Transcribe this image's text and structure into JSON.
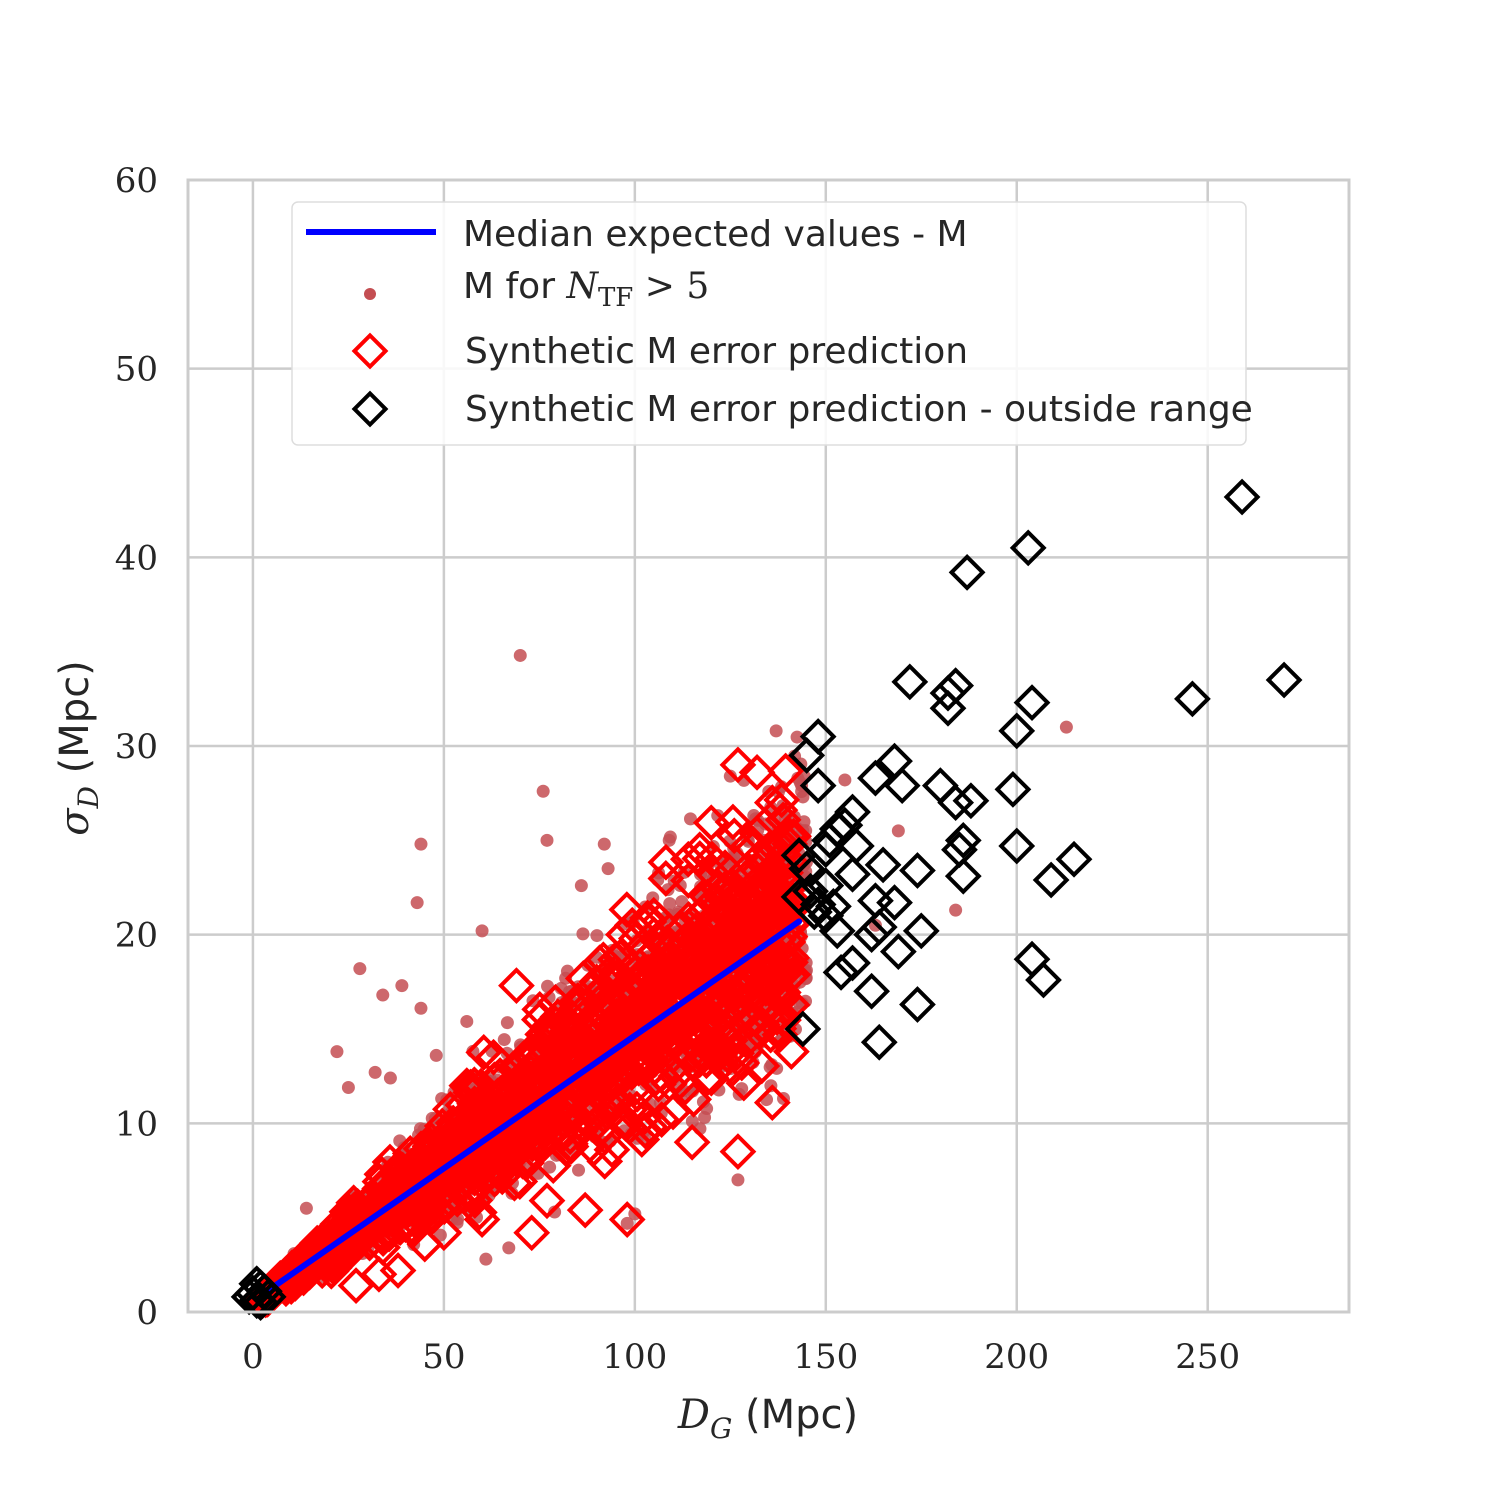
{
  "chart_data": {
    "type": "scatter",
    "title": "",
    "xlabel": "(Mpc)",
    "xlabel_symbol": "D",
    "xlabel_subscript": "G",
    "ylabel": "(Mpc)",
    "ylabel_symbol": "σ",
    "ylabel_subscript": "D",
    "xlim": [
      -17,
      287
    ],
    "ylim": [
      0,
      60
    ],
    "xticks": [
      0,
      50,
      100,
      150,
      200,
      250
    ],
    "yticks": [
      0,
      10,
      20,
      30,
      40,
      50,
      60
    ],
    "grid": true,
    "legend_placement": "top-center",
    "colors": {
      "median_line": "#0000ff",
      "observed_points": "#c44e52",
      "synthetic_in_range": "#ff0000",
      "synthetic_outside_range": "#000000",
      "grid": "#cccccc",
      "frame": "#cccccc"
    },
    "legend": [
      {
        "id": "median",
        "kind": "line",
        "label": "Median expected values - M"
      },
      {
        "id": "observed",
        "kind": "dot",
        "label_prefix": "M for ",
        "label_math": "N",
        "label_sub": "TF",
        "label_suffix": " > 5"
      },
      {
        "id": "synthetic",
        "kind": "diamond-red",
        "label": "Synthetic M error prediction"
      },
      {
        "id": "outside",
        "kind": "diamond-black",
        "label": "Synthetic M error prediction - outside range"
      }
    ],
    "series": [
      {
        "id": "median",
        "type": "line",
        "points": [
          [
            3,
            1.0
          ],
          [
            143,
            20.7
          ]
        ]
      },
      {
        "id": "observed",
        "type": "scatter",
        "outliers": [
          [
            70,
            34.8
          ],
          [
            137,
            30.8
          ],
          [
            213,
            31.0
          ],
          [
            76,
            27.6
          ],
          [
            44,
            24.8
          ],
          [
            77,
            25.0
          ],
          [
            92,
            24.8
          ],
          [
            93,
            23.5
          ],
          [
            86,
            22.6
          ],
          [
            43,
            21.7
          ],
          [
            28,
            18.2
          ],
          [
            34,
            16.8
          ],
          [
            39,
            17.3
          ],
          [
            44,
            16.1
          ],
          [
            22,
            13.8
          ],
          [
            25,
            11.9
          ],
          [
            32,
            12.7
          ],
          [
            36,
            12.4
          ],
          [
            106,
            22.9
          ],
          [
            109,
            25.0
          ],
          [
            60,
            20.2
          ],
          [
            155,
            28.2
          ],
          [
            169,
            25.5
          ],
          [
            184,
            21.3
          ],
          [
            163,
            20.5
          ],
          [
            134,
            25.0
          ],
          [
            125,
            28.4
          ],
          [
            127,
            7.0
          ],
          [
            100,
            5.2
          ],
          [
            98,
            4.7
          ],
          [
            79,
            5.3
          ],
          [
            67,
            3.4
          ],
          [
            61,
            2.8
          ],
          [
            14,
            5.5
          ],
          [
            19,
            4.0
          ],
          [
            120,
            20.5
          ],
          [
            130,
            17.5
          ],
          [
            140,
            16.0
          ],
          [
            118,
            22.5
          ],
          [
            90,
            18.8
          ],
          [
            56,
            15.4
          ],
          [
            48,
            13.6
          ]
        ],
        "cloud": {
          "x_range": [
            1,
            145
          ],
          "slope": 0.1473,
          "intercept": 0.55,
          "spread": 0.18,
          "count": 1800
        }
      },
      {
        "id": "synthetic",
        "type": "scatter",
        "outliers": [
          [
            127,
            29.0
          ],
          [
            132,
            28.6
          ],
          [
            136,
            27.0
          ],
          [
            138,
            26.6
          ],
          [
            135,
            24.5
          ],
          [
            114,
            24.0
          ],
          [
            117,
            24.5
          ],
          [
            135,
            23.0
          ],
          [
            130,
            21.5
          ],
          [
            69,
            17.3
          ],
          [
            105,
            20.0
          ],
          [
            97,
            20.0
          ],
          [
            136,
            11.1
          ],
          [
            127,
            8.5
          ],
          [
            98,
            4.9
          ],
          [
            87,
            5.4
          ],
          [
            73,
            4.2
          ],
          [
            38,
            2.2
          ],
          [
            141,
            13.8
          ],
          [
            138,
            14.7
          ],
          [
            128,
            13.2
          ],
          [
            115,
            9.0
          ],
          [
            110,
            10.6
          ],
          [
            104,
            9.8
          ],
          [
            94,
            8.6
          ],
          [
            77,
            5.9
          ],
          [
            60,
            4.9
          ],
          [
            50,
            4.2
          ],
          [
            45,
            3.6
          ],
          [
            33,
            2.0
          ],
          [
            27,
            1.4
          ],
          [
            122,
            22.5
          ],
          [
            119,
            22.0
          ],
          [
            133,
            18.6
          ],
          [
            137,
            16.8
          ],
          [
            111,
            16.5
          ],
          [
            99,
            15.2
          ],
          [
            87,
            12.5
          ],
          [
            90,
            17.5
          ],
          [
            120,
            14.0
          ],
          [
            56,
            12.0
          ],
          [
            63,
            13.5
          ],
          [
            75,
            15.5
          ],
          [
            85,
            16.5
          ],
          [
            108,
            18.5
          ],
          [
            113,
            19.5
          ],
          [
            95,
            18.0
          ],
          [
            102,
            16.0
          ]
        ],
        "cloud": {
          "x_range": [
            2,
            142
          ],
          "slope": 0.1473,
          "intercept": 0.4,
          "spread": 0.16,
          "count": 1200
        }
      },
      {
        "id": "outside",
        "type": "scatter",
        "points": [
          [
            259,
            43.2
          ],
          [
            203,
            40.5
          ],
          [
            187,
            39.2
          ],
          [
            270,
            33.5
          ],
          [
            246,
            32.5
          ],
          [
            204,
            32.3
          ],
          [
            172,
            33.4
          ],
          [
            184,
            33.2
          ],
          [
            182,
            32.8
          ],
          [
            182,
            32.0
          ],
          [
            148,
            30.5
          ],
          [
            145,
            29.5
          ],
          [
            200,
            30.8
          ],
          [
            168,
            29.2
          ],
          [
            163,
            28.3
          ],
          [
            170,
            27.9
          ],
          [
            148,
            27.9
          ],
          [
            180,
            27.9
          ],
          [
            184,
            27.0
          ],
          [
            188,
            27.1
          ],
          [
            199,
            27.7
          ],
          [
            157,
            26.5
          ],
          [
            155,
            25.8
          ],
          [
            153,
            25.6
          ],
          [
            151,
            25.0
          ],
          [
            150,
            24.5
          ],
          [
            158,
            24.7
          ],
          [
            186,
            25.0
          ],
          [
            185,
            24.5
          ],
          [
            200,
            24.7
          ],
          [
            143,
            24.2
          ],
          [
            145,
            23.5
          ],
          [
            165,
            23.7
          ],
          [
            174,
            23.4
          ],
          [
            157,
            23.2
          ],
          [
            186,
            23.1
          ],
          [
            209,
            22.9
          ],
          [
            215,
            24.0
          ],
          [
            150,
            22.6
          ],
          [
            146,
            22.3
          ],
          [
            143,
            22.0
          ],
          [
            148,
            21.6
          ],
          [
            152,
            21.5
          ],
          [
            147,
            21.2
          ],
          [
            150,
            21.0
          ],
          [
            153,
            20.2
          ],
          [
            163,
            21.8
          ],
          [
            168,
            21.7
          ],
          [
            164,
            20.4
          ],
          [
            175,
            20.2
          ],
          [
            162,
            20.0
          ],
          [
            169,
            19.1
          ],
          [
            157,
            18.5
          ],
          [
            154,
            18.0
          ],
          [
            204,
            18.7
          ],
          [
            207,
            17.6
          ],
          [
            162,
            17.0
          ],
          [
            174,
            16.3
          ],
          [
            144,
            15.0
          ],
          [
            164,
            14.3
          ],
          [
            1,
            1.5
          ],
          [
            2,
            1.3
          ],
          [
            0,
            1.0
          ],
          [
            3,
            1.1
          ],
          [
            -1,
            0.8
          ],
          [
            1,
            0.6
          ],
          [
            4,
            0.8
          ],
          [
            2,
            0.5
          ]
        ]
      }
    ]
  }
}
